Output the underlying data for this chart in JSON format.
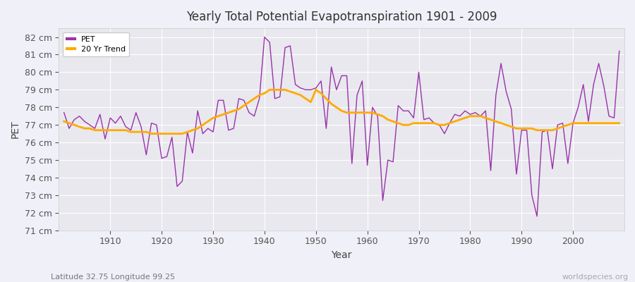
{
  "title": "Yearly Total Potential Evapotranspiration 1901 - 2009",
  "xlabel": "Year",
  "ylabel": "PET",
  "subtitle": "Latitude 32.75 Longitude 99.25",
  "watermark": "worldspecies.org",
  "bg_color": "#f0f0f8",
  "plot_bg_color": "#e8e8ee",
  "grid_color": "#ffffff",
  "line_color_pet": "#9933aa",
  "line_color_trend": "#ffaa00",
  "ylim": [
    71,
    82.5
  ],
  "yticks": [
    71,
    72,
    73,
    74,
    75,
    76,
    77,
    78,
    79,
    80,
    81,
    82
  ],
  "years": [
    1901,
    1902,
    1903,
    1904,
    1905,
    1906,
    1907,
    1908,
    1909,
    1910,
    1911,
    1912,
    1913,
    1914,
    1915,
    1916,
    1917,
    1918,
    1919,
    1920,
    1921,
    1922,
    1923,
    1924,
    1925,
    1926,
    1927,
    1928,
    1929,
    1930,
    1931,
    1932,
    1933,
    1934,
    1935,
    1936,
    1937,
    1938,
    1939,
    1940,
    1941,
    1942,
    1943,
    1944,
    1945,
    1946,
    1947,
    1948,
    1949,
    1950,
    1951,
    1952,
    1953,
    1954,
    1955,
    1956,
    1957,
    1958,
    1959,
    1960,
    1961,
    1962,
    1963,
    1964,
    1965,
    1966,
    1967,
    1968,
    1969,
    1970,
    1971,
    1972,
    1973,
    1974,
    1975,
    1976,
    1977,
    1978,
    1979,
    1980,
    1981,
    1982,
    1983,
    1984,
    1985,
    1986,
    1987,
    1988,
    1989,
    1990,
    1991,
    1992,
    1993,
    1994,
    1995,
    1996,
    1997,
    1998,
    1999,
    2000,
    2001,
    2002,
    2003,
    2004,
    2005,
    2006,
    2007,
    2008,
    2009
  ],
  "pet": [
    77.7,
    76.8,
    77.3,
    77.5,
    77.2,
    77.0,
    76.8,
    77.6,
    76.2,
    77.4,
    77.1,
    77.5,
    76.9,
    76.7,
    77.7,
    76.9,
    75.3,
    77.1,
    77.0,
    75.1,
    75.2,
    76.3,
    73.5,
    73.8,
    76.6,
    75.4,
    77.8,
    76.5,
    76.8,
    76.6,
    78.4,
    78.4,
    76.7,
    76.8,
    78.5,
    78.4,
    77.7,
    77.5,
    78.5,
    82.0,
    81.7,
    78.5,
    78.6,
    81.4,
    81.5,
    79.3,
    79.1,
    79.0,
    79.0,
    79.1,
    79.5,
    76.8,
    80.3,
    79.0,
    79.8,
    79.8,
    74.8,
    78.7,
    79.5,
    74.7,
    78.0,
    77.5,
    72.7,
    75.0,
    74.9,
    78.1,
    77.8,
    77.8,
    77.4,
    80.0,
    77.3,
    77.4,
    77.1,
    77.0,
    76.5,
    77.1,
    77.6,
    77.5,
    77.8,
    77.6,
    77.7,
    77.5,
    77.8,
    74.4,
    78.7,
    80.5,
    78.9,
    77.9,
    74.2,
    76.7,
    76.7,
    73.0,
    71.8,
    76.6,
    76.7,
    74.5,
    77.0,
    77.1,
    74.8,
    77.1,
    78.0,
    79.3,
    77.2,
    79.3,
    80.5,
    79.2,
    77.5,
    77.4,
    81.2
  ],
  "trend": [
    77.2,
    77.1,
    77.0,
    76.9,
    76.8,
    76.8,
    76.7,
    76.7,
    76.7,
    76.7,
    76.7,
    76.7,
    76.7,
    76.6,
    76.6,
    76.6,
    76.6,
    76.5,
    76.5,
    76.5,
    76.5,
    76.5,
    76.5,
    76.5,
    76.6,
    76.7,
    76.8,
    77.0,
    77.2,
    77.4,
    77.5,
    77.6,
    77.7,
    77.8,
    77.9,
    78.1,
    78.3,
    78.5,
    78.7,
    78.8,
    79.0,
    79.0,
    79.0,
    79.0,
    78.9,
    78.8,
    78.7,
    78.5,
    78.3,
    79.0,
    78.8,
    78.5,
    78.2,
    78.0,
    77.8,
    77.7,
    77.7,
    77.7,
    77.7,
    77.7,
    77.7,
    77.6,
    77.5,
    77.3,
    77.2,
    77.1,
    77.0,
    77.0,
    77.1,
    77.1,
    77.1,
    77.1,
    77.1,
    77.0,
    77.0,
    77.1,
    77.2,
    77.3,
    77.4,
    77.5,
    77.5,
    77.5,
    77.4,
    77.3,
    77.2,
    77.1,
    77.0,
    76.9,
    76.8,
    76.8,
    76.8,
    76.8,
    76.7,
    76.7,
    76.7,
    76.7,
    76.8,
    76.9,
    77.0,
    77.1,
    77.1,
    77.1,
    77.1,
    77.1,
    77.1,
    77.1,
    77.1,
    77.1,
    77.1
  ]
}
